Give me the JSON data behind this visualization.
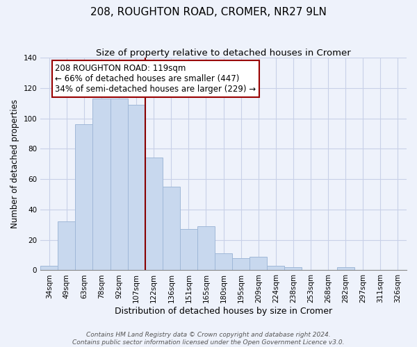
{
  "title": "208, ROUGHTON ROAD, CROMER, NR27 9LN",
  "subtitle": "Size of property relative to detached houses in Cromer",
  "xlabel": "Distribution of detached houses by size in Cromer",
  "ylabel": "Number of detached properties",
  "categories": [
    "34sqm",
    "49sqm",
    "63sqm",
    "78sqm",
    "92sqm",
    "107sqm",
    "122sqm",
    "136sqm",
    "151sqm",
    "165sqm",
    "180sqm",
    "195sqm",
    "209sqm",
    "224sqm",
    "238sqm",
    "253sqm",
    "268sqm",
    "282sqm",
    "297sqm",
    "311sqm",
    "326sqm"
  ],
  "values": [
    3,
    32,
    96,
    113,
    113,
    109,
    74,
    55,
    27,
    29,
    11,
    8,
    9,
    3,
    2,
    0,
    0,
    2,
    0,
    0,
    0
  ],
  "bar_color": "#c8d8ee",
  "bar_edge_color": "#a0b8d8",
  "marker_index": 6,
  "marker_color": "#880000",
  "annotation_lines": [
    "208 ROUGHTON ROAD: 119sqm",
    "← 66% of detached houses are smaller (447)",
    "34% of semi-detached houses are larger (229) →"
  ],
  "annotation_box_color": "#ffffff",
  "annotation_box_edge": "#990000",
  "ylim": [
    0,
    140
  ],
  "yticks": [
    0,
    20,
    40,
    60,
    80,
    100,
    120,
    140
  ],
  "footer_line1": "Contains HM Land Registry data © Crown copyright and database right 2024.",
  "footer_line2": "Contains public sector information licensed under the Open Government Licence v3.0.",
  "background_color": "#eef2fb",
  "grid_color": "#c8d0e8",
  "title_fontsize": 11,
  "subtitle_fontsize": 9.5,
  "xlabel_fontsize": 9,
  "ylabel_fontsize": 8.5,
  "tick_fontsize": 7.5,
  "annotation_fontsize": 8.5,
  "footer_fontsize": 6.5
}
